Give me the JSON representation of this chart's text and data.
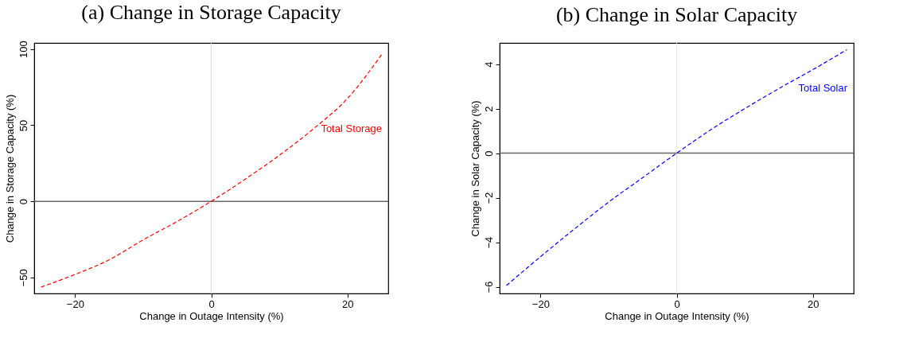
{
  "chart_data": [
    {
      "type": "line",
      "title": "(a) Change in Storage Capacity",
      "xlabel": "Change in Outage Intensity (%)",
      "ylabel": "Change in Storage Capacity (%)",
      "x": [
        -25,
        -20,
        -15,
        -10,
        -5,
        0,
        5,
        10,
        15,
        20,
        25
      ],
      "series": [
        {
          "name": "Total Storage",
          "color": "#ff0000",
          "values": [
            -56.3,
            -48,
            -38.4,
            -25.3,
            -13.2,
            0,
            14.6,
            30.2,
            47.6,
            67.5,
            96.2
          ]
        }
      ],
      "xlim": [
        -26,
        26
      ],
      "ylim": [
        -60.5,
        104
      ],
      "xticks": [
        -20,
        0,
        20
      ],
      "yticks": [
        -50,
        0,
        50,
        100
      ],
      "grid": false,
      "marker": "none",
      "line_style": "dashed",
      "ref_lines": [
        {
          "axis": "x",
          "value": 0,
          "color": "#e0e0e0"
        },
        {
          "axis": "y",
          "value": 0,
          "color": "#666666"
        }
      ]
    },
    {
      "type": "line",
      "title": "(b) Change in Solar Capacity",
      "xlabel": "Change in Outage Intensity (%)",
      "ylabel": "Change in Solar Capacity (%)",
      "x": [
        -25,
        -20,
        -15,
        -10,
        -5,
        0,
        5,
        10,
        15,
        20,
        25
      ],
      "series": [
        {
          "name": "Total Solar",
          "color": "#0000ff",
          "values": [
            -5.94,
            -4.65,
            -3.4,
            -2.2,
            -1.1,
            0,
            1.05,
            2.0,
            2.9,
            3.75,
            4.65
          ]
        }
      ],
      "xlim": [
        -26,
        26
      ],
      "ylim": [
        -6.3,
        4.95
      ],
      "xticks": [
        -20,
        0,
        20
      ],
      "yticks": [
        -6,
        -4,
        -2,
        0,
        2,
        4
      ],
      "grid": false,
      "marker": "none",
      "line_style": "dashed",
      "ref_lines": [
        {
          "axis": "x",
          "value": 0,
          "color": "#e0e0e0"
        },
        {
          "axis": "y",
          "value": 0,
          "color": "#666666"
        }
      ]
    }
  ]
}
